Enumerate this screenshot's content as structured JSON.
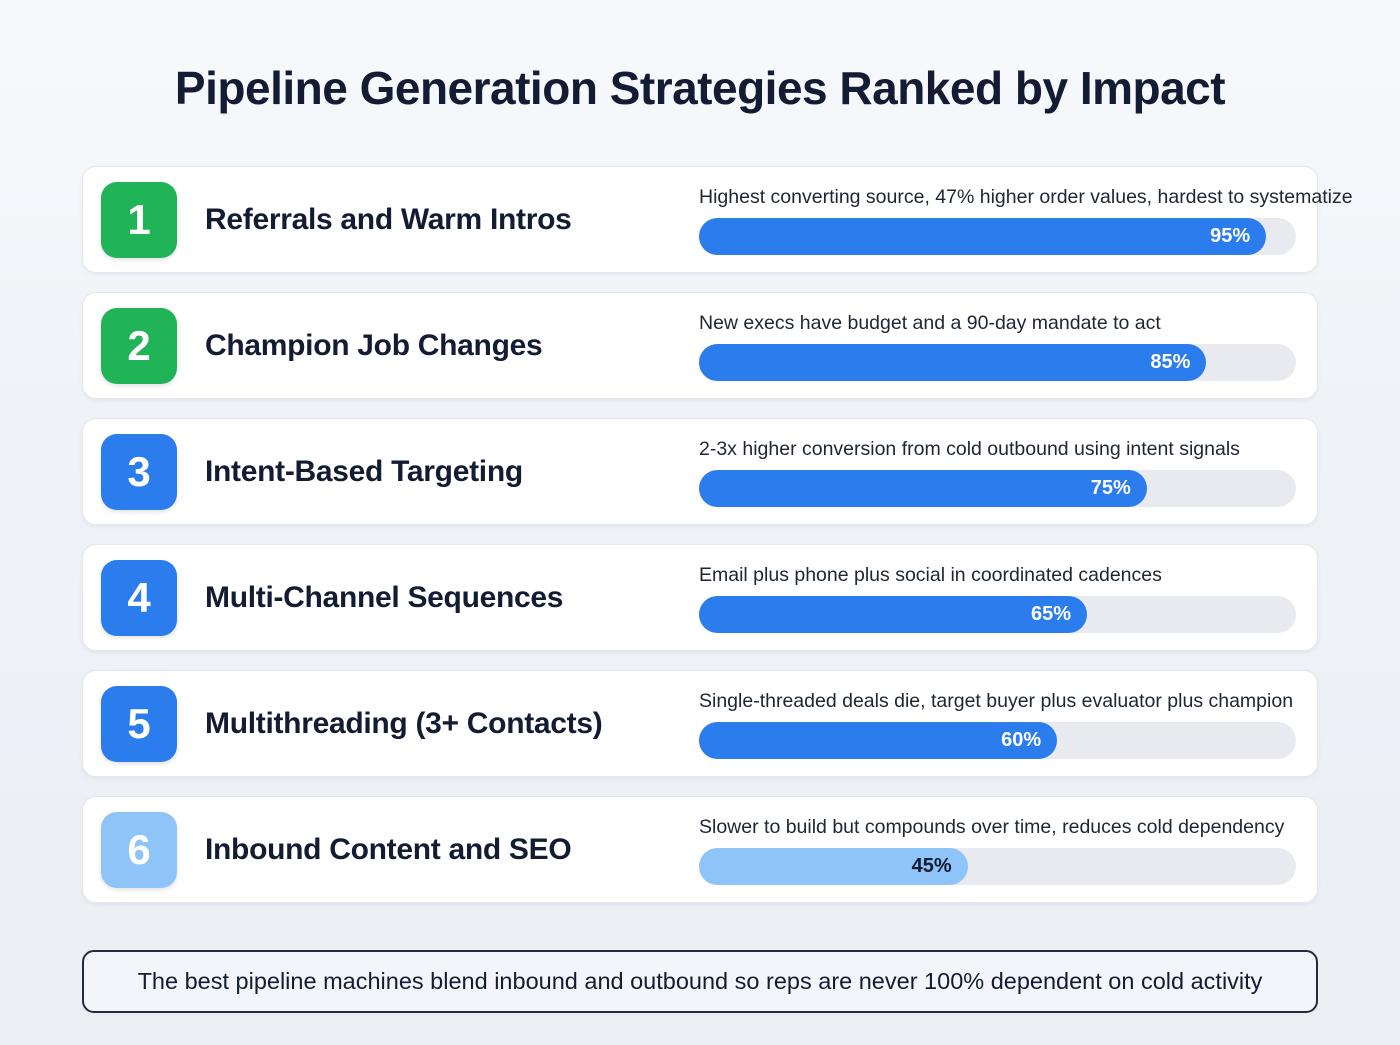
{
  "page": {
    "title": "Pipeline Generation Strategies Ranked by Impact",
    "footer": "The best pipeline machines blend inbound and outbound so reps are never 100% dependent on cold activity"
  },
  "colors": {
    "green": "#21b357",
    "blue": "#2b7ced",
    "light_blue": "#8ec4f8",
    "track": "#e8eaef",
    "dark_navy": "#141c33"
  },
  "rows": [
    {
      "rank": "1",
      "title": "Referrals and Warm Intros",
      "description": "Highest converting source, 47% higher order values, hardest to systematize",
      "percent_label": "95%",
      "bar_width": "95%",
      "badge_color": "#21b357",
      "bar_color": "#2b7ced",
      "percent_text_color": "#ffffff"
    },
    {
      "rank": "2",
      "title": "Champion Job Changes",
      "description": "New execs have budget and a 90-day mandate to act",
      "percent_label": "85%",
      "bar_width": "85%",
      "badge_color": "#21b357",
      "bar_color": "#2b7ced",
      "percent_text_color": "#ffffff"
    },
    {
      "rank": "3",
      "title": "Intent-Based Targeting",
      "description": "2-3x higher conversion from cold outbound using intent signals",
      "percent_label": "75%",
      "bar_width": "75%",
      "badge_color": "#2b7ced",
      "bar_color": "#2b7ced",
      "percent_text_color": "#ffffff"
    },
    {
      "rank": "4",
      "title": "Multi-Channel Sequences",
      "description": "Email plus phone plus social in coordinated cadences",
      "percent_label": "65%",
      "bar_width": "65%",
      "badge_color": "#2b7ced",
      "bar_color": "#2b7ced",
      "percent_text_color": "#ffffff"
    },
    {
      "rank": "5",
      "title": "Multithreading (3+ Contacts)",
      "description": "Single-threaded deals die, target buyer plus evaluator plus champion",
      "percent_label": "60%",
      "bar_width": "60%",
      "badge_color": "#2b7ced",
      "bar_color": "#2b7ced",
      "percent_text_color": "#ffffff"
    },
    {
      "rank": "6",
      "title": "Inbound Content and SEO",
      "description": "Slower to build but compounds over time, reduces cold dependency",
      "percent_label": "45%",
      "bar_width": "45%",
      "badge_color": "#8ec4f8",
      "bar_color": "#8ec4f8",
      "percent_text_color": "#141c33"
    }
  ],
  "chart_data": {
    "type": "bar",
    "orientation": "horizontal",
    "title": "Pipeline Generation Strategies Ranked by Impact",
    "categories": [
      "Referrals and Warm Intros",
      "Champion Job Changes",
      "Intent-Based Targeting",
      "Multi-Channel Sequences",
      "Multithreading (3+ Contacts)",
      "Inbound Content and SEO"
    ],
    "values": [
      95,
      85,
      75,
      65,
      60,
      45
    ],
    "value_labels": [
      "95%",
      "85%",
      "75%",
      "65%",
      "60%",
      "45%"
    ],
    "annotations": [
      "Highest converting source, 47% higher order values, hardest to systematize",
      "New execs have budget and a 90-day mandate to act",
      "2-3x higher conversion from cold outbound using intent signals",
      "Email plus phone plus social in coordinated cadences",
      "Single-threaded deals die, target buyer plus evaluator plus champion",
      "Slower to build but compounds over time, reduces cold dependency"
    ],
    "xlim": [
      0,
      100
    ],
    "grid": false,
    "legend": false,
    "footnote": "The best pipeline machines blend inbound and outbound so reps are never 100% dependent on cold activity"
  }
}
